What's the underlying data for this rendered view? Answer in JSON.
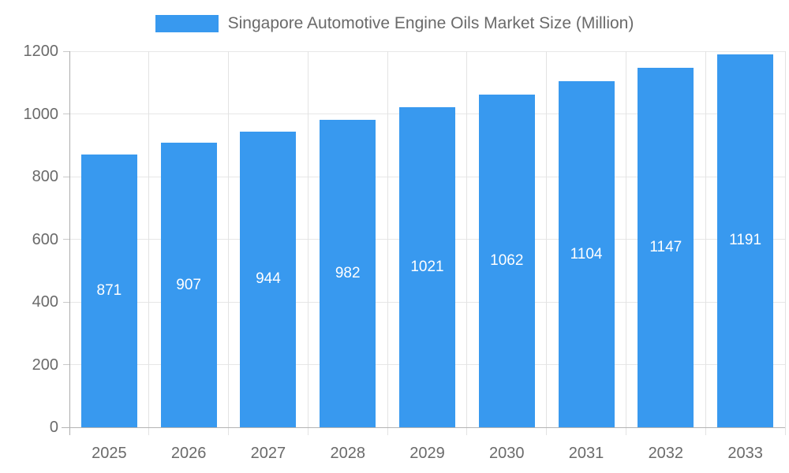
{
  "chart_data": {
    "type": "bar",
    "title": "Singapore Automotive Engine Oils Market Size (Million)",
    "legend_position": "top",
    "categories": [
      "2025",
      "2026",
      "2027",
      "2028",
      "2029",
      "2030",
      "2031",
      "2032",
      "2033"
    ],
    "values": [
      871,
      907,
      944,
      982,
      1021,
      1062,
      1104,
      1147,
      1191
    ],
    "xlabel": "",
    "ylabel": "",
    "ylim": [
      0,
      1200
    ],
    "yticks": [
      0,
      200,
      400,
      600,
      800,
      1000,
      1200
    ],
    "grid": true,
    "colors": {
      "bar": "#3899ef",
      "bar_value_text": "#ffffff",
      "axis_text": "#6a6a6a",
      "gridline": "#e7e7e7",
      "axis_line": "#b0b0b0",
      "legend_text": "#6a6a6a"
    }
  }
}
